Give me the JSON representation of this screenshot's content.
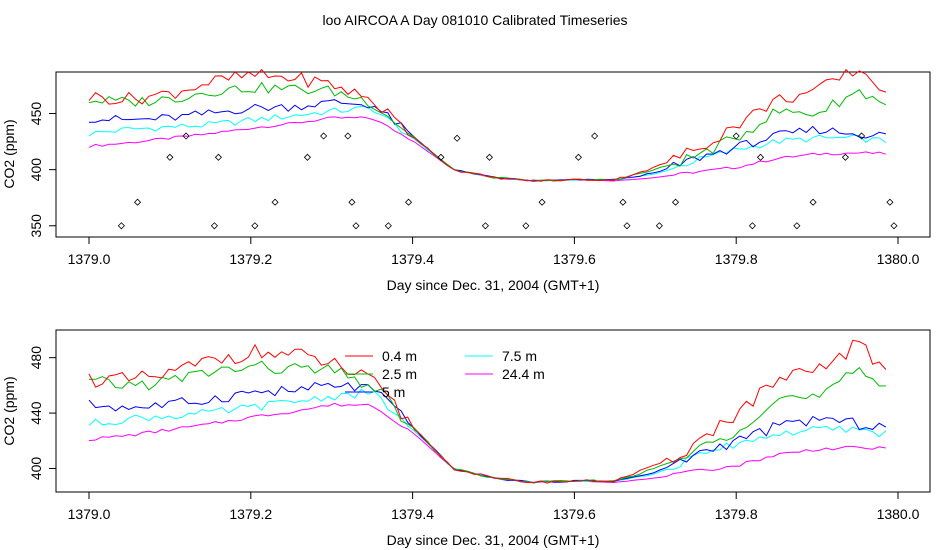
{
  "title": "loo AIRCOA A  Day 081010  Calibrated Timeseries",
  "colors": {
    "0.4 m": "#ff0000",
    "2.5 m": "#00bb00",
    "5 m": "#0000ff",
    "7.5 m": "#00ffff",
    "24.4 m": "#ff00ff"
  },
  "chart_data": [
    {
      "type": "line",
      "xlabel": "Day since Dec. 31, 2004 (GMT+1)",
      "ylabel": "CO2 (ppm)",
      "xlim": [
        1379.0,
        1380.0
      ],
      "ylim": [
        340,
        487
      ],
      "xticks": [
        1379.0,
        1379.2,
        1379.4,
        1379.6,
        1379.8,
        1380.0
      ],
      "xtick_labels": [
        "1379.0",
        "1379.2",
        "1379.4",
        "1379.6",
        "1379.8",
        "1380.0"
      ],
      "yticks": [
        350,
        400,
        450
      ],
      "ytick_labels": [
        "350",
        "400",
        "450"
      ],
      "grid": false,
      "legend": false,
      "series": [
        {
          "name": "0.4 m",
          "x": [
            1379.0,
            1379.05,
            1379.1,
            1379.15,
            1379.2,
            1379.25,
            1379.3,
            1379.35,
            1379.4,
            1379.45,
            1379.5,
            1379.55,
            1379.6,
            1379.65,
            1379.7,
            1379.75,
            1379.8,
            1379.85,
            1379.9,
            1379.95,
            1380.0
          ],
          "values": [
            465,
            463,
            468,
            478,
            484,
            482,
            476,
            462,
            430,
            400,
            393,
            390,
            391,
            391,
            402,
            418,
            440,
            462,
            470,
            490,
            462
          ]
        },
        {
          "name": "2.5 m",
          "x": [
            1379.0,
            1379.05,
            1379.1,
            1379.15,
            1379.2,
            1379.25,
            1379.3,
            1379.35,
            1379.4,
            1379.45,
            1379.5,
            1379.55,
            1379.6,
            1379.65,
            1379.7,
            1379.75,
            1379.8,
            1379.85,
            1379.9,
            1379.95,
            1380.0
          ],
          "values": [
            462,
            460,
            463,
            470,
            473,
            472,
            470,
            460,
            430,
            400,
            393,
            390,
            391,
            391,
            400,
            412,
            428,
            452,
            450,
            470,
            455
          ]
        },
        {
          "name": "5 m",
          "x": [
            1379.0,
            1379.05,
            1379.1,
            1379.15,
            1379.2,
            1379.25,
            1379.3,
            1379.35,
            1379.4,
            1379.45,
            1379.5,
            1379.55,
            1379.6,
            1379.65,
            1379.7,
            1379.75,
            1379.8,
            1379.85,
            1379.9,
            1379.95,
            1380.0
          ],
          "values": [
            446,
            444,
            446,
            450,
            455,
            456,
            460,
            458,
            430,
            400,
            393,
            390,
            391,
            391,
            397,
            410,
            420,
            430,
            436,
            432,
            430
          ]
        },
        {
          "name": "7.5 m",
          "x": [
            1379.0,
            1379.05,
            1379.1,
            1379.15,
            1379.2,
            1379.25,
            1379.3,
            1379.35,
            1379.4,
            1379.45,
            1379.5,
            1379.55,
            1379.6,
            1379.65,
            1379.7,
            1379.75,
            1379.8,
            1379.85,
            1379.9,
            1379.95,
            1380.0
          ],
          "values": [
            432,
            436,
            438,
            440,
            444,
            448,
            452,
            455,
            428,
            400,
            393,
            390,
            391,
            391,
            396,
            408,
            418,
            425,
            428,
            428,
            424
          ]
        },
        {
          "name": "24.4 m",
          "x": [
            1379.0,
            1379.05,
            1379.1,
            1379.15,
            1379.2,
            1379.25,
            1379.3,
            1379.35,
            1379.4,
            1379.45,
            1379.5,
            1379.55,
            1379.6,
            1379.65,
            1379.7,
            1379.75,
            1379.8,
            1379.85,
            1379.9,
            1379.95,
            1380.0
          ],
          "values": [
            421,
            424,
            428,
            432,
            437,
            441,
            446,
            446,
            426,
            400,
            393,
            390,
            391,
            390,
            393,
            398,
            402,
            410,
            414,
            415,
            414
          ]
        }
      ],
      "flags": {
        "name": "",
        "x": [
          1379.04,
          1379.06,
          1379.1,
          1379.12,
          1379.155,
          1379.16,
          1379.205,
          1379.23,
          1379.27,
          1379.29,
          1379.32,
          1379.325,
          1379.33,
          1379.37,
          1379.395,
          1379.435,
          1379.455,
          1379.49,
          1379.495,
          1379.54,
          1379.56,
          1379.605,
          1379.625,
          1379.66,
          1379.665,
          1379.705,
          1379.725,
          1379.8,
          1379.82,
          1379.83,
          1379.875,
          1379.895,
          1379.935,
          1379.955,
          1379.99,
          1379.995
        ],
        "values": [
          350,
          371,
          411,
          430,
          350,
          411,
          350,
          371,
          411,
          430,
          430,
          371,
          350,
          350,
          371,
          411,
          428,
          350,
          411,
          350,
          371,
          411,
          430,
          371,
          350,
          350,
          371,
          430,
          350,
          411,
          350,
          371,
          411,
          430,
          371,
          350
        ]
      }
    },
    {
      "type": "line",
      "xlabel": "Day since Dec. 31, 2004 (GMT+1)",
      "ylabel": "CO2 (ppm)",
      "xlim": [
        1379.0,
        1380.0
      ],
      "ylim": [
        383,
        500
      ],
      "xticks": [
        1379.0,
        1379.2,
        1379.4,
        1379.6,
        1379.8,
        1380.0
      ],
      "xtick_labels": [
        "1379.0",
        "1379.2",
        "1379.4",
        "1379.6",
        "1379.8",
        "1380.0"
      ],
      "yticks": [
        400,
        440,
        480
      ],
      "ytick_labels": [
        "400",
        "440",
        "480"
      ],
      "grid": false,
      "legend": "top-center",
      "legend_items": [
        "0.4 m",
        "2.5 m",
        "5 m",
        "7.5 m",
        "24.4 m"
      ],
      "series": [
        {
          "name": "0.4 m",
          "x": [
            1379.0,
            1379.05,
            1379.1,
            1379.15,
            1379.2,
            1379.25,
            1379.3,
            1379.35,
            1379.4,
            1379.45,
            1379.5,
            1379.55,
            1379.6,
            1379.65,
            1379.7,
            1379.75,
            1379.8,
            1379.85,
            1379.9,
            1379.95,
            1380.0
          ],
          "values": [
            465,
            463,
            468,
            478,
            484,
            482,
            476,
            462,
            430,
            400,
            393,
            390,
            391,
            391,
            402,
            418,
            440,
            462,
            470,
            490,
            462
          ]
        },
        {
          "name": "2.5 m",
          "x": [
            1379.0,
            1379.05,
            1379.1,
            1379.15,
            1379.2,
            1379.25,
            1379.3,
            1379.35,
            1379.4,
            1379.45,
            1379.5,
            1379.55,
            1379.6,
            1379.65,
            1379.7,
            1379.75,
            1379.8,
            1379.85,
            1379.9,
            1379.95,
            1380.0
          ],
          "values": [
            462,
            460,
            463,
            470,
            473,
            472,
            470,
            460,
            430,
            400,
            393,
            390,
            391,
            391,
            400,
            412,
            428,
            452,
            450,
            470,
            455
          ]
        },
        {
          "name": "5 m",
          "x": [
            1379.0,
            1379.05,
            1379.1,
            1379.15,
            1379.2,
            1379.25,
            1379.3,
            1379.35,
            1379.4,
            1379.45,
            1379.5,
            1379.55,
            1379.6,
            1379.65,
            1379.7,
            1379.75,
            1379.8,
            1379.85,
            1379.9,
            1379.95,
            1380.0
          ],
          "values": [
            446,
            444,
            446,
            450,
            455,
            456,
            460,
            458,
            430,
            400,
            393,
            390,
            391,
            391,
            397,
            410,
            420,
            430,
            436,
            432,
            430
          ]
        },
        {
          "name": "7.5 m",
          "x": [
            1379.0,
            1379.05,
            1379.1,
            1379.15,
            1379.2,
            1379.25,
            1379.3,
            1379.35,
            1379.4,
            1379.45,
            1379.5,
            1379.55,
            1379.6,
            1379.65,
            1379.7,
            1379.75,
            1379.8,
            1379.85,
            1379.9,
            1379.95,
            1380.0
          ],
          "values": [
            432,
            436,
            438,
            440,
            444,
            448,
            452,
            455,
            428,
            400,
            393,
            390,
            391,
            391,
            396,
            408,
            418,
            425,
            428,
            428,
            424
          ]
        },
        {
          "name": "24.4 m",
          "x": [
            1379.0,
            1379.05,
            1379.1,
            1379.15,
            1379.2,
            1379.25,
            1379.3,
            1379.35,
            1379.4,
            1379.45,
            1379.5,
            1379.55,
            1379.6,
            1379.65,
            1379.7,
            1379.75,
            1379.8,
            1379.85,
            1379.9,
            1379.95,
            1380.0
          ],
          "values": [
            421,
            424,
            428,
            432,
            437,
            441,
            446,
            446,
            426,
            400,
            393,
            390,
            391,
            390,
            393,
            398,
            402,
            410,
            414,
            415,
            414
          ]
        }
      ]
    }
  ]
}
